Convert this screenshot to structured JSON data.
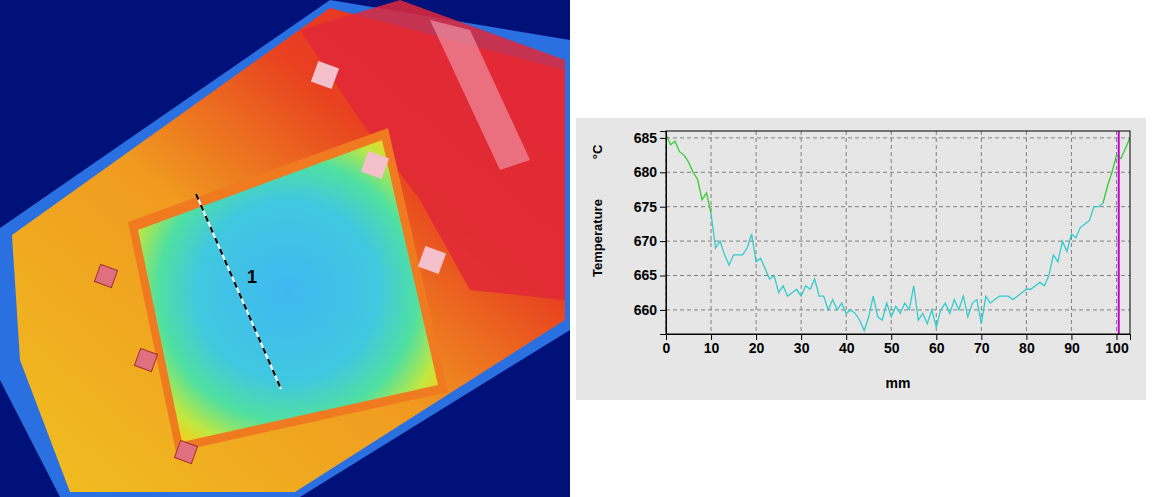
{
  "chart_data": {
    "type": "line",
    "x_label": "mm",
    "y_label": "Temperature",
    "y_unit": "°C",
    "xlim": [
      0,
      103
    ],
    "ylim": [
      656.5,
      686
    ],
    "xticks": [
      0,
      10,
      20,
      30,
      40,
      50,
      60,
      70,
      80,
      90,
      100
    ],
    "yticks": [
      660,
      665,
      670,
      675,
      680,
      685
    ],
    "grid": true,
    "series": [
      {
        "color": "#33cc33",
        "line_style": "solid",
        "x": [
          0,
          1,
          2,
          3,
          4,
          5,
          6,
          7,
          8,
          9,
          10
        ],
        "values": [
          685.5,
          684,
          684.5,
          683,
          682.5,
          681.5,
          680,
          679,
          676,
          677,
          674
        ]
      },
      {
        "color": "#33cccc",
        "line_style": "solid",
        "x": [
          10,
          11,
          12,
          13,
          14,
          15,
          16,
          17,
          18,
          19,
          20,
          21,
          22,
          23,
          24,
          25,
          26,
          27,
          28,
          29,
          30,
          31,
          32,
          33,
          34,
          35,
          36,
          37,
          38,
          39,
          40,
          41,
          42,
          43,
          44,
          45,
          46,
          47,
          48,
          49,
          50,
          51,
          52,
          53,
          54,
          55,
          56,
          57,
          58,
          59,
          60,
          61,
          62,
          63,
          64,
          65,
          66,
          67,
          68,
          69,
          70,
          71,
          72,
          73,
          74,
          75,
          76,
          77,
          78,
          79,
          80,
          81,
          82,
          83,
          84,
          85,
          86,
          87,
          88,
          89,
          90,
          91,
          92,
          93,
          94,
          95,
          96,
          97
        ],
        "values": [
          674,
          669,
          670,
          668,
          666.5,
          668,
          668,
          668,
          669,
          671,
          667,
          667.5,
          666,
          664.5,
          665,
          662.5,
          663.5,
          662,
          662.5,
          663,
          662,
          663.5,
          663,
          664.5,
          662,
          662,
          660,
          661.5,
          660,
          661,
          659.5,
          660,
          659.5,
          658.5,
          657,
          659,
          662,
          659,
          658.5,
          661,
          659,
          660.5,
          659.5,
          661,
          660,
          663.5,
          658.5,
          659.5,
          658,
          660,
          657.5,
          660,
          661,
          659.5,
          661.5,
          660,
          662,
          659,
          661,
          661.5,
          658,
          662,
          661,
          661.5,
          662,
          662,
          662,
          661.5,
          662,
          662.5,
          663,
          663,
          663.5,
          664,
          663.5,
          665,
          668,
          667,
          670,
          668.5,
          671,
          670.5,
          672,
          672.5,
          673,
          675,
          675,
          675.5
        ]
      },
      {
        "color": "#33cc33",
        "line_style": "solid",
        "x": [
          97,
          98,
          99,
          100,
          101,
          102,
          103
        ],
        "values": [
          675.5,
          678,
          680,
          682.5,
          682,
          683.5,
          685
        ]
      }
    ],
    "cursor": {
      "x": 100.5,
      "color": "#cc00cc"
    }
  },
  "thermal_image": {
    "profile_label": "1"
  }
}
